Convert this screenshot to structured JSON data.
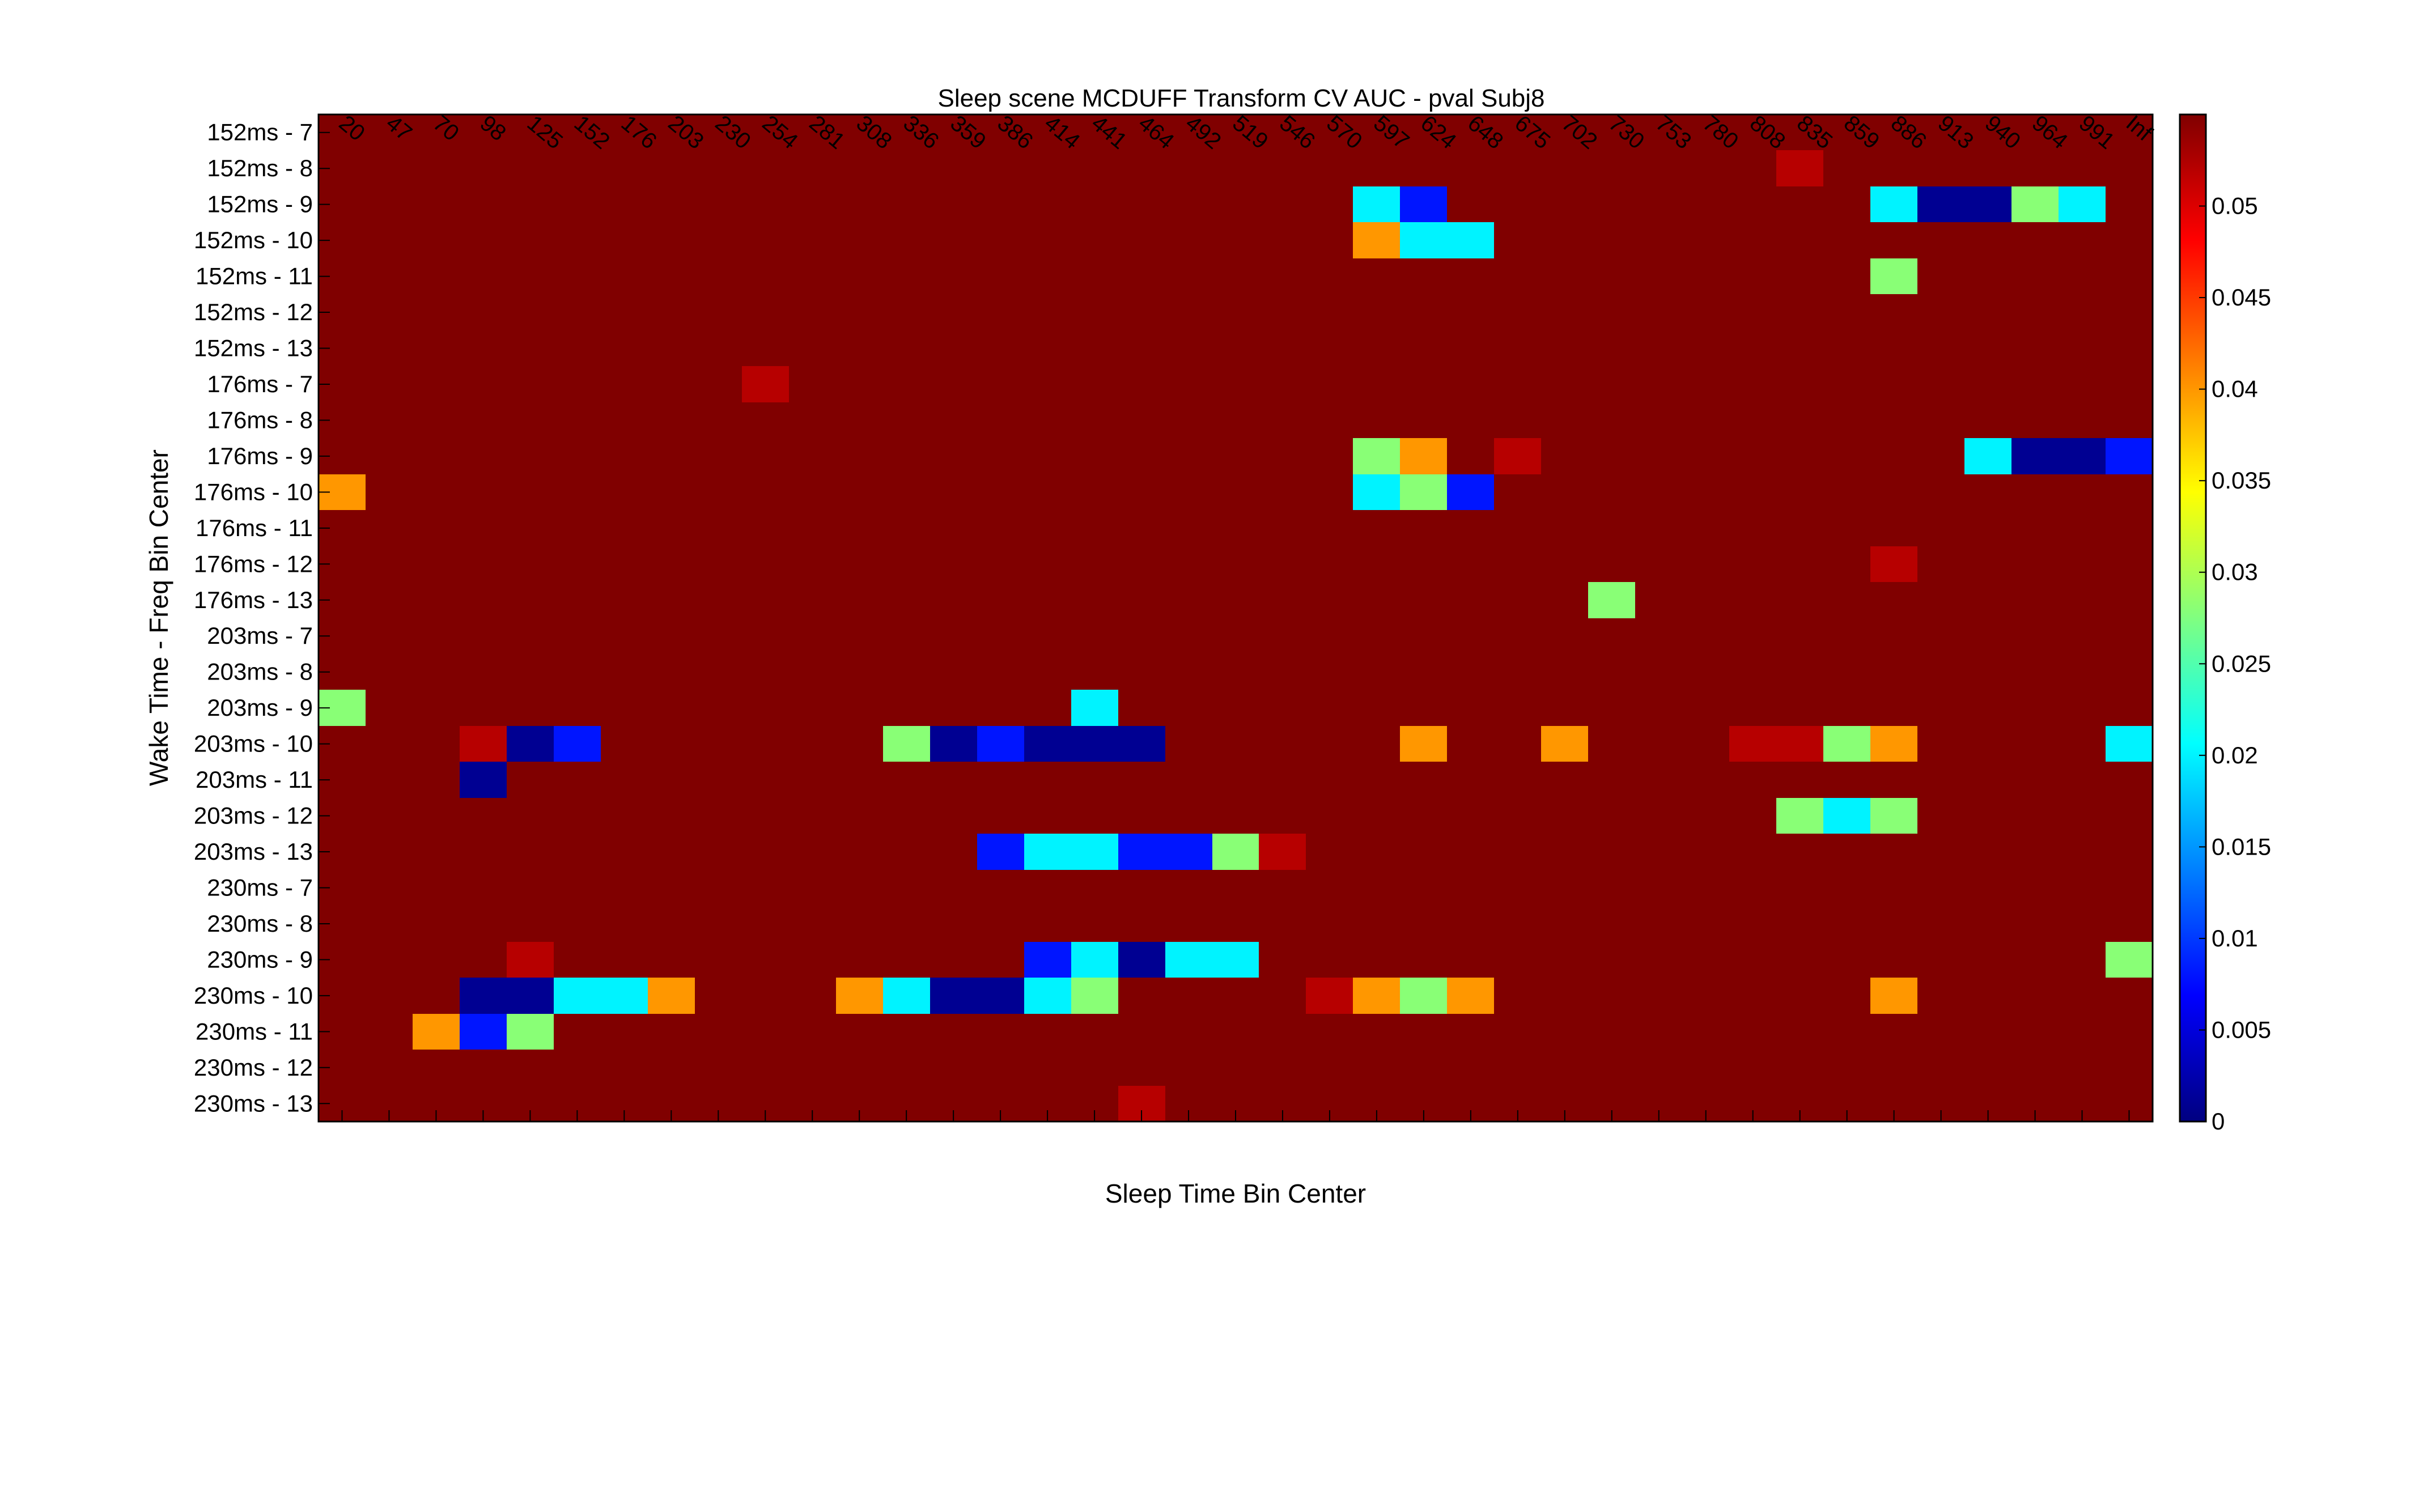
{
  "chart_data": {
    "type": "heatmap",
    "title": "Sleep scene MCDUFF Transform CV AUC - pval Subj8",
    "xlabel": "Sleep Time Bin Center",
    "ylabel": "Wake Time - Freq Bin Center",
    "x_categories": [
      "20",
      "47",
      "70",
      "98",
      "125",
      "152",
      "176",
      "203",
      "230",
      "254",
      "281",
      "308",
      "336",
      "359",
      "386",
      "414",
      "441",
      "464",
      "492",
      "519",
      "546",
      "570",
      "597",
      "624",
      "648",
      "675",
      "702",
      "730",
      "753",
      "780",
      "808",
      "835",
      "859",
      "886",
      "913",
      "940",
      "964",
      "991",
      "Inf"
    ],
    "y_categories": [
      "152ms - 7",
      "152ms - 8",
      "152ms - 9",
      "152ms - 10",
      "152ms - 11",
      "152ms - 12",
      "152ms - 13",
      "176ms - 7",
      "176ms - 8",
      "176ms - 9",
      "176ms - 10",
      "176ms - 11",
      "176ms - 12",
      "176ms - 13",
      "203ms - 7",
      "203ms - 8",
      "203ms - 9",
      "203ms - 10",
      "203ms - 11",
      "203ms - 12",
      "203ms - 13",
      "230ms - 7",
      "230ms - 8",
      "230ms - 9",
      "230ms - 10",
      "230ms - 11",
      "230ms - 12",
      "230ms - 13"
    ],
    "background_value": 0.055,
    "cells": [
      {
        "row": 1,
        "col": 31,
        "value": 0.052
      },
      {
        "row": 2,
        "col": 22,
        "value": 0.02
      },
      {
        "row": 2,
        "col": 23,
        "value": 0.008
      },
      {
        "row": 2,
        "col": 33,
        "value": 0.02
      },
      {
        "row": 2,
        "col": 34,
        "value": 0.001
      },
      {
        "row": 2,
        "col": 35,
        "value": 0.001
      },
      {
        "row": 2,
        "col": 36,
        "value": 0.028
      },
      {
        "row": 2,
        "col": 37,
        "value": 0.02
      },
      {
        "row": 3,
        "col": 22,
        "value": 0.04
      },
      {
        "row": 3,
        "col": 23,
        "value": 0.02
      },
      {
        "row": 3,
        "col": 24,
        "value": 0.02
      },
      {
        "row": 4,
        "col": 33,
        "value": 0.028
      },
      {
        "row": 7,
        "col": 9,
        "value": 0.052
      },
      {
        "row": 9,
        "col": 22,
        "value": 0.028
      },
      {
        "row": 9,
        "col": 23,
        "value": 0.04
      },
      {
        "row": 9,
        "col": 25,
        "value": 0.052
      },
      {
        "row": 9,
        "col": 35,
        "value": 0.02
      },
      {
        "row": 9,
        "col": 36,
        "value": 0.001
      },
      {
        "row": 9,
        "col": 37,
        "value": 0.001
      },
      {
        "row": 9,
        "col": 38,
        "value": 0.008
      },
      {
        "row": 10,
        "col": 0,
        "value": 0.04
      },
      {
        "row": 10,
        "col": 22,
        "value": 0.02
      },
      {
        "row": 10,
        "col": 23,
        "value": 0.028
      },
      {
        "row": 10,
        "col": 24,
        "value": 0.008
      },
      {
        "row": 12,
        "col": 33,
        "value": 0.052
      },
      {
        "row": 13,
        "col": 27,
        "value": 0.028
      },
      {
        "row": 16,
        "col": 0,
        "value": 0.028
      },
      {
        "row": 16,
        "col": 16,
        "value": 0.02
      },
      {
        "row": 17,
        "col": 3,
        "value": 0.052
      },
      {
        "row": 17,
        "col": 4,
        "value": 0.001
      },
      {
        "row": 17,
        "col": 5,
        "value": 0.008
      },
      {
        "row": 17,
        "col": 12,
        "value": 0.028
      },
      {
        "row": 17,
        "col": 13,
        "value": 0.001
      },
      {
        "row": 17,
        "col": 14,
        "value": 0.008
      },
      {
        "row": 17,
        "col": 15,
        "value": 0.001
      },
      {
        "row": 17,
        "col": 16,
        "value": 0.001
      },
      {
        "row": 17,
        "col": 17,
        "value": 0.001
      },
      {
        "row": 17,
        "col": 23,
        "value": 0.04
      },
      {
        "row": 17,
        "col": 26,
        "value": 0.04
      },
      {
        "row": 17,
        "col": 30,
        "value": 0.052
      },
      {
        "row": 17,
        "col": 31,
        "value": 0.052
      },
      {
        "row": 17,
        "col": 32,
        "value": 0.028
      },
      {
        "row": 17,
        "col": 33,
        "value": 0.04
      },
      {
        "row": 17,
        "col": 38,
        "value": 0.02
      },
      {
        "row": 18,
        "col": 3,
        "value": 0.001
      },
      {
        "row": 19,
        "col": 31,
        "value": 0.028
      },
      {
        "row": 19,
        "col": 32,
        "value": 0.02
      },
      {
        "row": 19,
        "col": 33,
        "value": 0.028
      },
      {
        "row": 20,
        "col": 14,
        "value": 0.008
      },
      {
        "row": 20,
        "col": 15,
        "value": 0.02
      },
      {
        "row": 20,
        "col": 16,
        "value": 0.02
      },
      {
        "row": 20,
        "col": 17,
        "value": 0.008
      },
      {
        "row": 20,
        "col": 18,
        "value": 0.008
      },
      {
        "row": 20,
        "col": 19,
        "value": 0.028
      },
      {
        "row": 20,
        "col": 20,
        "value": 0.052
      },
      {
        "row": 23,
        "col": 4,
        "value": 0.052
      },
      {
        "row": 23,
        "col": 15,
        "value": 0.008
      },
      {
        "row": 23,
        "col": 16,
        "value": 0.02
      },
      {
        "row": 23,
        "col": 17,
        "value": 0.001
      },
      {
        "row": 23,
        "col": 18,
        "value": 0.02
      },
      {
        "row": 23,
        "col": 19,
        "value": 0.02
      },
      {
        "row": 23,
        "col": 38,
        "value": 0.028
      },
      {
        "row": 24,
        "col": 3,
        "value": 0.001
      },
      {
        "row": 24,
        "col": 4,
        "value": 0.001
      },
      {
        "row": 24,
        "col": 5,
        "value": 0.02
      },
      {
        "row": 24,
        "col": 6,
        "value": 0.02
      },
      {
        "row": 24,
        "col": 7,
        "value": 0.04
      },
      {
        "row": 24,
        "col": 11,
        "value": 0.04
      },
      {
        "row": 24,
        "col": 12,
        "value": 0.02
      },
      {
        "row": 24,
        "col": 13,
        "value": 0.001
      },
      {
        "row": 24,
        "col": 14,
        "value": 0.001
      },
      {
        "row": 24,
        "col": 15,
        "value": 0.02
      },
      {
        "row": 24,
        "col": 16,
        "value": 0.028
      },
      {
        "row": 24,
        "col": 21,
        "value": 0.052
      },
      {
        "row": 24,
        "col": 22,
        "value": 0.04
      },
      {
        "row": 24,
        "col": 23,
        "value": 0.028
      },
      {
        "row": 24,
        "col": 24,
        "value": 0.04
      },
      {
        "row": 24,
        "col": 33,
        "value": 0.04
      },
      {
        "row": 25,
        "col": 2,
        "value": 0.04
      },
      {
        "row": 25,
        "col": 3,
        "value": 0.008
      },
      {
        "row": 25,
        "col": 4,
        "value": 0.028
      },
      {
        "row": 27,
        "col": 17,
        "value": 0.052
      }
    ],
    "colorbar": {
      "colormap": "jet",
      "vmin": 0,
      "vmax": 0.055,
      "ticks": [
        0,
        0.005,
        0.01,
        0.015,
        0.02,
        0.025,
        0.03,
        0.035,
        0.04,
        0.045,
        0.05
      ],
      "tick_labels": [
        "0",
        "0.005",
        "0.01",
        "0.015",
        "0.02",
        "0.025",
        "0.03",
        "0.035",
        "0.04",
        "0.045",
        "0.05"
      ]
    }
  }
}
